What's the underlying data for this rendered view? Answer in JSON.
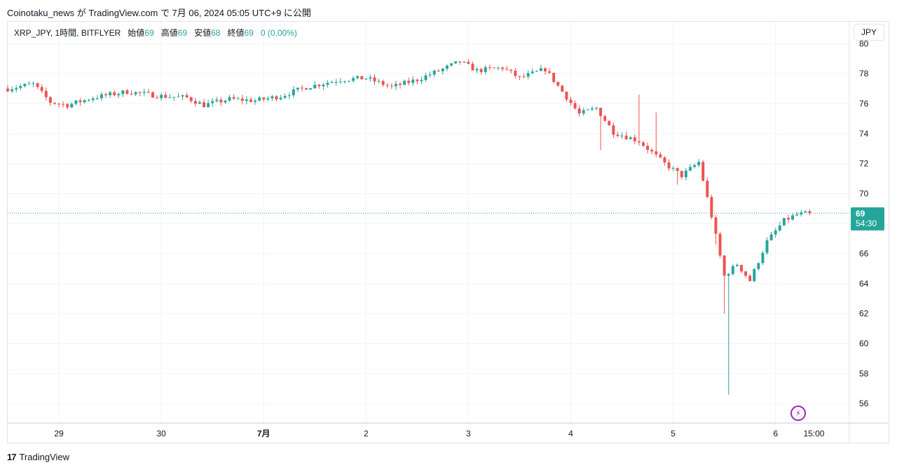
{
  "caption": "Coinotaku_news が TradingView.com で 7月 06, 2024 05:05 UTC+9 に公開",
  "legend": {
    "symbol": "XRP_JPY, 1時間, BITFLYER",
    "open_label": "始値",
    "open_value": "69",
    "high_label": "高値",
    "high_value": "69",
    "low_label": "安値",
    "low_value": "68",
    "close_label": "終値",
    "close_value": "69",
    "change": "0 (0.00%)"
  },
  "currency": "JPY",
  "price_tag": {
    "price": "69",
    "countdown": "54:30"
  },
  "footer": {
    "brand": "TradingView"
  },
  "icons": {
    "brand_logo": "tradingview-logo-icon",
    "bolt": "lightning-bolt-icon"
  },
  "colors": {
    "up": "#26a69a",
    "down": "#ef5350",
    "grid": "#f0f3fa",
    "purple": "#9c27b0"
  },
  "chart_data": {
    "type": "candlestick",
    "ylim": [
      54.7,
      80.2
    ],
    "y_ticks": [
      56,
      58,
      60,
      62,
      64,
      66,
      68,
      70,
      72,
      74,
      76,
      78,
      80
    ],
    "x_ticks": [
      "29",
      "30",
      "7月",
      "2",
      "3",
      "4",
      "5",
      "6",
      "15:00"
    ],
    "x_tick_hours": [
      12,
      36,
      60,
      84,
      108,
      132,
      156,
      180,
      189
    ],
    "x_range_hours": [
      0,
      197.3
    ],
    "last_price": 68.7,
    "anchors": [
      [
        0,
        77.0
      ],
      [
        6,
        77.3
      ],
      [
        10,
        76.1
      ],
      [
        14,
        75.9
      ],
      [
        20,
        76.4
      ],
      [
        28,
        76.8
      ],
      [
        36,
        76.5
      ],
      [
        42,
        76.4
      ],
      [
        46,
        75.9
      ],
      [
        52,
        76.3
      ],
      [
        58,
        76.2
      ],
      [
        64,
        76.5
      ],
      [
        70,
        77.1
      ],
      [
        78,
        77.6
      ],
      [
        84,
        77.7
      ],
      [
        90,
        77.1
      ],
      [
        96,
        77.6
      ],
      [
        102,
        78.3
      ],
      [
        106,
        78.8
      ],
      [
        110,
        78.2
      ],
      [
        116,
        78.4
      ],
      [
        120,
        77.7
      ],
      [
        126,
        78.3
      ],
      [
        130,
        76.8
      ],
      [
        134,
        75.3
      ],
      [
        138,
        75.7
      ],
      [
        142,
        74.1
      ],
      [
        148,
        73.5
      ],
      [
        154,
        72.0
      ],
      [
        158,
        71.2
      ],
      [
        162,
        72.1
      ],
      [
        165,
        68.5
      ],
      [
        168,
        64.5
      ],
      [
        171,
        65.3
      ],
      [
        174,
        64.2
      ],
      [
        178,
        66.8
      ],
      [
        182,
        68.2
      ],
      [
        185,
        68.6
      ],
      [
        188,
        68.7
      ]
    ],
    "spikes": [
      {
        "hour": 168,
        "low": 62.0
      },
      {
        "hour": 169,
        "low": 56.6
      },
      {
        "hour": 148,
        "high": 76.6
      },
      {
        "hour": 152,
        "high": 75.4
      },
      {
        "hour": 139,
        "low": 72.9
      },
      {
        "hour": 166,
        "low": 66.6
      },
      {
        "hour": 157,
        "low": 70.6
      }
    ]
  }
}
